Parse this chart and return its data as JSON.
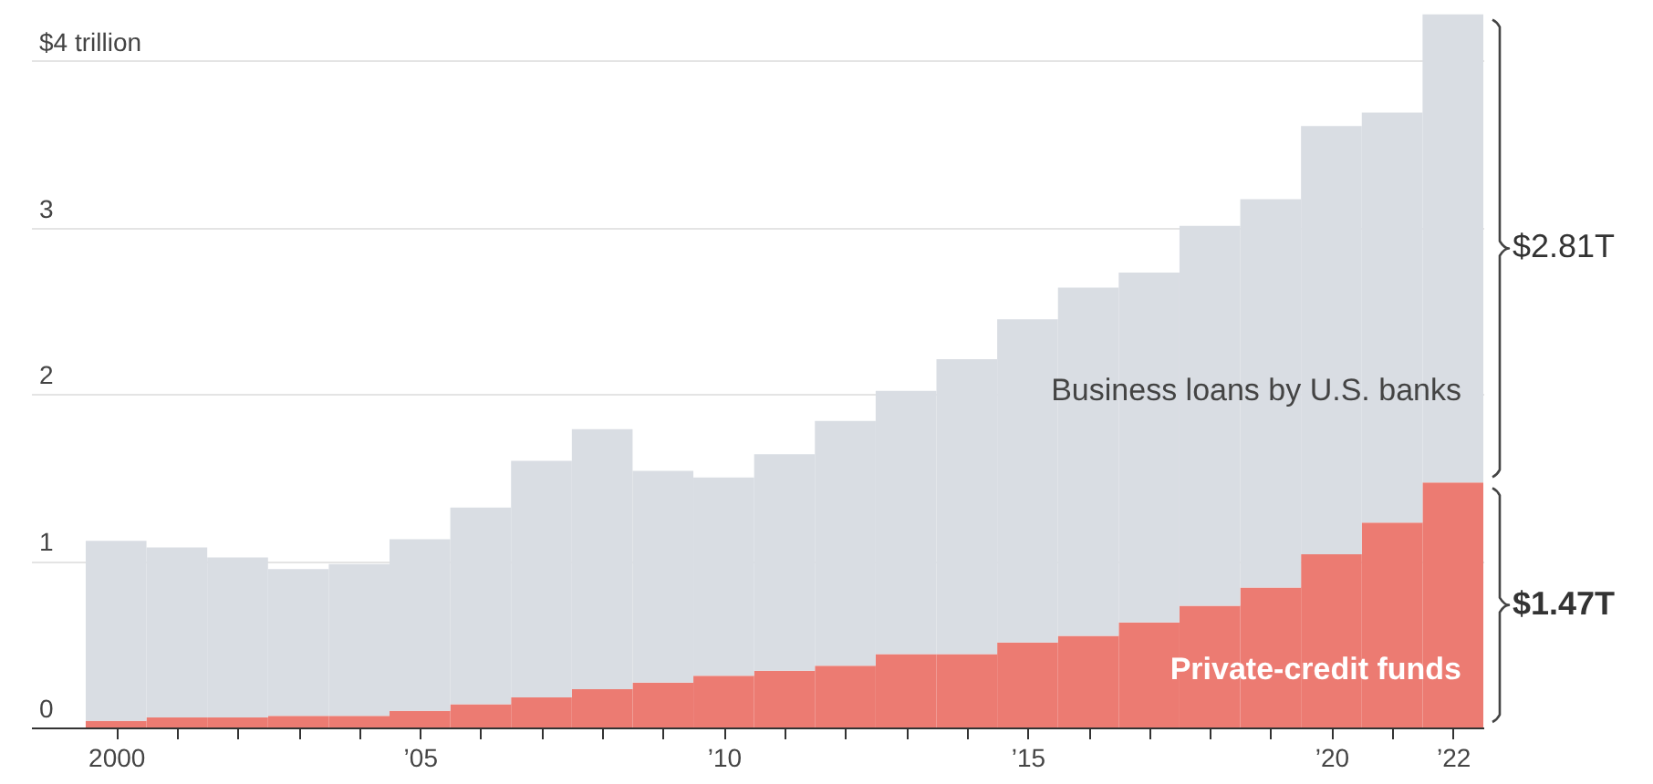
{
  "chart_data": {
    "type": "bar",
    "stacked": true,
    "x": [
      2000,
      2001,
      2002,
      2003,
      2004,
      2005,
      2006,
      2007,
      2008,
      2009,
      2010,
      2011,
      2012,
      2013,
      2014,
      2015,
      2016,
      2017,
      2018,
      2019,
      2020,
      2021,
      2022
    ],
    "series": [
      {
        "name": "Private-credit funds",
        "color": "#ec7b72",
        "values": [
          0.04,
          0.06,
          0.06,
          0.07,
          0.07,
          0.1,
          0.14,
          0.18,
          0.23,
          0.27,
          0.31,
          0.34,
          0.37,
          0.44,
          0.44,
          0.51,
          0.55,
          0.63,
          0.73,
          0.84,
          1.04,
          1.23,
          1.47
        ]
      },
      {
        "name": "Business loans by U.S. banks",
        "color": "#d9dde3",
        "values": [
          1.08,
          1.02,
          0.96,
          0.88,
          0.91,
          1.03,
          1.18,
          1.42,
          1.56,
          1.27,
          1.19,
          1.3,
          1.47,
          1.58,
          1.77,
          1.94,
          2.09,
          2.1,
          2.28,
          2.33,
          2.57,
          2.46,
          2.81
        ]
      }
    ],
    "annotations": [
      "$1.47T",
      "$2.81T"
    ],
    "xlim": [
      1998.6,
      2022.5
    ],
    "xticks": [
      {
        "value": 2000,
        "label": "2000"
      },
      {
        "value": 2001,
        "label": null
      },
      {
        "value": 2002,
        "label": null
      },
      {
        "value": 2003,
        "label": null
      },
      {
        "value": 2004,
        "label": null
      },
      {
        "value": 2005,
        "label": "’05"
      },
      {
        "value": 2006,
        "label": null
      },
      {
        "value": 2007,
        "label": null
      },
      {
        "value": 2008,
        "label": null
      },
      {
        "value": 2009,
        "label": null
      },
      {
        "value": 2010,
        "label": "’10"
      },
      {
        "value": 2011,
        "label": null
      },
      {
        "value": 2012,
        "label": null
      },
      {
        "value": 2013,
        "label": null
      },
      {
        "value": 2014,
        "label": null
      },
      {
        "value": 2015,
        "label": "’15"
      },
      {
        "value": 2016,
        "label": null
      },
      {
        "value": 2017,
        "label": null
      },
      {
        "value": 2018,
        "label": null
      },
      {
        "value": 2019,
        "label": null
      },
      {
        "value": 2020,
        "label": "’20"
      },
      {
        "value": 2021,
        "label": null
      },
      {
        "value": 2022,
        "label": "’22"
      }
    ],
    "ylim": [
      0,
      4.3
    ],
    "yticks": [
      0,
      1,
      2,
      3,
      {
        "value": 4,
        "label": "$4 trillion"
      }
    ],
    "grid": "y"
  }
}
